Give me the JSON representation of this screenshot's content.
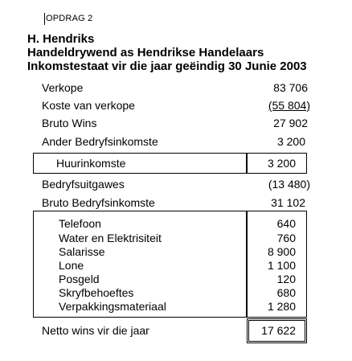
{
  "heading": {
    "task": "OPDRAG 2",
    "company": "H. Hendriks",
    "business": "Handeldrywend as Hendrikse Handelaars",
    "statement": "Inkomstestaat vir die jaar geëindig 30 Junie 2003"
  },
  "lines": [
    {
      "label": "Verkope",
      "value": "83 706"
    },
    {
      "label": "Koste van verkope",
      "value": "(55 804)"
    },
    {
      "label": "Bruto Wins",
      "value": "27 902"
    },
    {
      "label": "Ander Bedryfsinkomste",
      "value": "3 200"
    },
    {
      "label": "Huurinkomste",
      "value": "3 200"
    },
    {
      "label": "Bedryfsuitgawes",
      "value": "(13 480)"
    },
    {
      "label": "Bruto Bedryfsinkomste",
      "value": "31 102"
    }
  ],
  "expenses": [
    {
      "label": "Telefoon",
      "value": "640"
    },
    {
      "label": "Water en Elektrisiteit",
      "value": "760"
    },
    {
      "label": "Salarisse",
      "value": "8 900"
    },
    {
      "label": "Lone",
      "value": "1 100"
    },
    {
      "label": "Posgeld",
      "value": "120"
    },
    {
      "label": "Skryfbehoeftes",
      "value": "680"
    },
    {
      "label": "Verpakkingsmateriaal",
      "value": "1 280"
    }
  ],
  "net_profit": {
    "label": "Netto wins vir die jaar",
    "value": "17 622"
  }
}
